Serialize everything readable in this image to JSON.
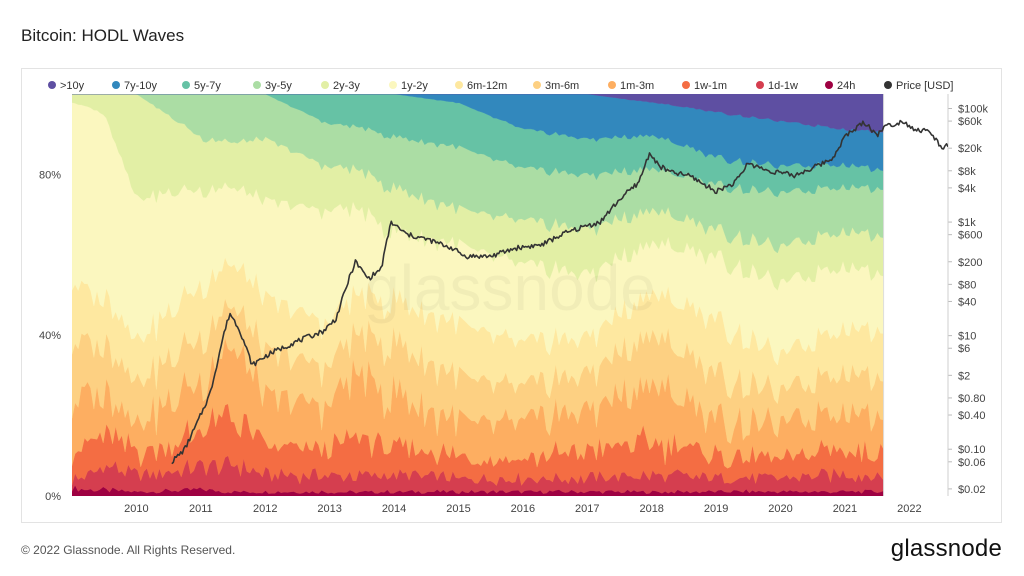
{
  "title": "Bitcoin: HODL Waves",
  "footer": "© 2022 Glassnode. All Rights Reserved.",
  "logo": "glassnode",
  "watermark": "glassnode",
  "chart_data": {
    "type": "area",
    "title": "Bitcoin: HODL Waves",
    "stacked": true,
    "legend_position": "top",
    "x_ticks": [
      "2010",
      "2011",
      "2012",
      "2013",
      "2014",
      "2015",
      "2016",
      "2017",
      "2018",
      "2019",
      "2020",
      "2021",
      "2022"
    ],
    "x_range": [
      2009.0,
      2022.6
    ],
    "data_end": 2021.6,
    "y_left_ticks": [
      "0%",
      "40%",
      "80%"
    ],
    "y_left_range": [
      0,
      100
    ],
    "y_right_ticks": [
      "$100k",
      "$60k",
      "$20k",
      "$8k",
      "$4k",
      "$1k",
      "$600",
      "$200",
      "$80",
      "$40",
      "$10",
      "$6",
      "$2",
      "$0.80",
      "$0.40",
      "$0.10",
      "$0.06",
      "$0.02"
    ],
    "y_right_values": [
      100000,
      60000,
      20000,
      8000,
      4000,
      1000,
      600,
      200,
      80,
      40,
      10,
      6,
      2,
      0.8,
      0.4,
      0.1,
      0.06,
      0.02
    ],
    "y_right_range": [
      0.015,
      180000
    ],
    "y_right_scale": "log",
    "series": [
      {
        "name": "24h",
        "color": "#9e0142",
        "x": [
          2009.0,
          2010,
          2011,
          2012,
          2013,
          2014,
          2015,
          2016,
          2017,
          2018,
          2019,
          2020,
          2021,
          2021.6
        ],
        "values": [
          2,
          1,
          1.5,
          1,
          1,
          1,
          1,
          1,
          1,
          1,
          1,
          1,
          1,
          1
        ]
      },
      {
        "name": "1d-1w",
        "color": "#d53e4f",
        "x": [
          2009.0,
          2009.5,
          2010,
          2011,
          2011.5,
          2012,
          2013,
          2014,
          2015,
          2016,
          2017,
          2018,
          2019,
          2020,
          2021,
          2021.6
        ],
        "values": [
          2,
          6,
          4,
          5,
          8,
          4,
          4,
          4,
          3,
          3,
          3,
          4,
          3,
          3,
          4,
          3
        ]
      },
      {
        "name": "1w-1m",
        "color": "#f46d43",
        "x": [
          2009.0,
          2009.5,
          2010,
          2011,
          2011.5,
          2012,
          2013,
          2013.4,
          2014,
          2015,
          2016,
          2017,
          2018,
          2019,
          2020,
          2021,
          2021.6
        ],
        "values": [
          8,
          8,
          5,
          8,
          14,
          6,
          6,
          10,
          6,
          5,
          5,
          6,
          8,
          5,
          4,
          6,
          5
        ]
      },
      {
        "name": "1m-3m",
        "color": "#fdae61",
        "x": [
          2009.0,
          2009.5,
          2010,
          2011,
          2011.5,
          2012,
          2013,
          2013.4,
          2014,
          2015,
          2016,
          2017,
          2018,
          2019,
          2020,
          2021,
          2021.6
        ],
        "values": [
          14,
          10,
          8,
          12,
          20,
          10,
          10,
          16,
          12,
          8,
          8,
          9,
          14,
          8,
          7,
          10,
          8
        ]
      },
      {
        "name": "3m-6m",
        "color": "#fdd082",
        "x": [
          2009.0,
          2009.5,
          2010,
          2011,
          2011.5,
          2012,
          2013,
          2013.4,
          2014,
          2015,
          2016,
          2017,
          2018,
          2019,
          2020,
          2021,
          2021.6
        ],
        "values": [
          15,
          12,
          10,
          10,
          12,
          10,
          9,
          10,
          12,
          10,
          8,
          8,
          12,
          10,
          7,
          9,
          8
        ]
      },
      {
        "name": "6m-12m",
        "color": "#fee8a0",
        "x": [
          2009.0,
          2009.5,
          2010,
          2011,
          2012,
          2013,
          2014,
          2015,
          2016,
          2017,
          2018,
          2019,
          2020,
          2021,
          2021.6
        ],
        "values": [
          15,
          12,
          10,
          12,
          12,
          10,
          10,
          12,
          10,
          8,
          10,
          12,
          8,
          10,
          10
        ]
      },
      {
        "name": "1y-2y",
        "color": "#fbf7bf",
        "x": [
          2009.0,
          2009.3,
          2010,
          2011,
          2012,
          2013,
          2014,
          2015,
          2016,
          2017,
          2018,
          2019,
          2020,
          2021,
          2021.6
        ],
        "values": [
          44,
          50,
          34,
          22,
          22,
          26,
          16,
          18,
          18,
          14,
          12,
          14,
          16,
          14,
          12
        ]
      },
      {
        "name": "2y-3y",
        "color": "#e2efa5",
        "x": [
          2009.0,
          2009.5,
          2010,
          2010.5,
          2011,
          2012,
          2013,
          2014,
          2015,
          2016,
          2017,
          2018,
          2019,
          2020,
          2021,
          2021.6
        ],
        "values": [
          2,
          5,
          25,
          18,
          12,
          14,
          10,
          10,
          8,
          10,
          10,
          8,
          6,
          8,
          8,
          8
        ]
      },
      {
        "name": "3y-5y",
        "color": "#abdda4",
        "x": [
          2009.0,
          2010,
          2011,
          2011.5,
          2012,
          2013,
          2014,
          2015,
          2016,
          2017,
          2018,
          2019,
          2020,
          2021,
          2021.6
        ],
        "values": [
          0,
          0,
          10,
          14,
          10,
          10,
          12,
          14,
          12,
          12,
          10,
          10,
          12,
          10,
          10
        ]
      },
      {
        "name": "5y-7y",
        "color": "#66c2a5",
        "x": [
          2009.0,
          2012,
          2013,
          2014,
          2015,
          2016,
          2017,
          2018,
          2019,
          2020,
          2021,
          2021.6
        ],
        "values": [
          0,
          0,
          7,
          10,
          10,
          9,
          8,
          8,
          6,
          6,
          5,
          4
        ]
      },
      {
        "name": "7y-10y",
        "color": "#3288bd",
        "x": [
          2009.0,
          2014,
          2015,
          2016,
          2017,
          2018,
          2019,
          2020,
          2021,
          2021.6
        ],
        "values": [
          0,
          0,
          2,
          8,
          10,
          8,
          10,
          10,
          8,
          8
        ]
      },
      {
        "name": ">10y",
        "color": "#5e4fa2",
        "x": [
          2009.0,
          2017,
          2018,
          2019,
          2020,
          2021,
          2021.6
        ],
        "values": [
          0,
          0,
          2,
          4,
          6,
          8,
          8
        ]
      }
    ],
    "legend": [
      {
        "name": ">10y",
        "color": "#5e4fa2"
      },
      {
        "name": "7y-10y",
        "color": "#3288bd"
      },
      {
        "name": "5y-7y",
        "color": "#66c2a5"
      },
      {
        "name": "3y-5y",
        "color": "#abdda4"
      },
      {
        "name": "2y-3y",
        "color": "#e2efa5"
      },
      {
        "name": "1y-2y",
        "color": "#fbf7bf"
      },
      {
        "name": "6m-12m",
        "color": "#fee8a0"
      },
      {
        "name": "3m-6m",
        "color": "#fdd082"
      },
      {
        "name": "1m-3m",
        "color": "#fdae61"
      },
      {
        "name": "1w-1m",
        "color": "#f46d43"
      },
      {
        "name": "1d-1w",
        "color": "#d53e4f"
      },
      {
        "name": "24h",
        "color": "#9e0142"
      },
      {
        "name": "Price [USD]",
        "color": "#333333"
      }
    ],
    "price": {
      "name": "Price [USD]",
      "color": "#333333",
      "x": [
        2010.55,
        2010.75,
        2010.95,
        2011.15,
        2011.35,
        2011.45,
        2011.6,
        2011.8,
        2011.95,
        2012.1,
        2012.5,
        2012.9,
        2013.1,
        2013.3,
        2013.4,
        2013.6,
        2013.8,
        2013.95,
        2014.2,
        2014.5,
        2014.9,
        2015.1,
        2015.5,
        2015.9,
        2016.3,
        2016.6,
        2016.9,
        2017.2,
        2017.5,
        2017.8,
        2017.97,
        2018.1,
        2018.3,
        2018.6,
        2018.9,
        2019.0,
        2019.3,
        2019.5,
        2019.8,
        2020.0,
        2020.2,
        2020.5,
        2020.8,
        2021.0,
        2021.3,
        2021.5,
        2021.6,
        2021.9,
        2022.1,
        2022.3,
        2022.5,
        2022.6
      ],
      "values": [
        0.06,
        0.1,
        0.3,
        1,
        10,
        25,
        13,
        3,
        4,
        5,
        8,
        12,
        20,
        100,
        200,
        100,
        150,
        1000,
        600,
        500,
        350,
        250,
        250,
        350,
        400,
        600,
        800,
        1000,
        2500,
        5000,
        17000,
        10000,
        7500,
        6500,
        4000,
        3500,
        5000,
        11000,
        8000,
        7500,
        6500,
        9000,
        13000,
        32000,
        58000,
        34000,
        47000,
        60000,
        42000,
        40000,
        21000,
        22000
      ]
    }
  }
}
